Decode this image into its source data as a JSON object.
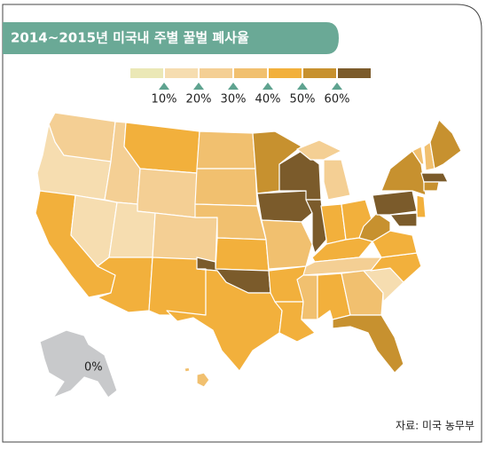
{
  "header": {
    "title": "2014~2015년 미국내 주별 꿀벌 폐사율"
  },
  "legend": {
    "colors": [
      "#ebe8b6",
      "#f6ddb0",
      "#f4cf94",
      "#f1c06f",
      "#f2b03c",
      "#c7912f",
      "#7b5b2b"
    ],
    "labels": [
      "10%",
      "20%",
      "30%",
      "40%",
      "50%",
      "60%"
    ]
  },
  "map": {
    "alaska_label": "0%",
    "alaska_color": "#c8c9cb"
  },
  "source": "자료: 미국 농무부"
}
